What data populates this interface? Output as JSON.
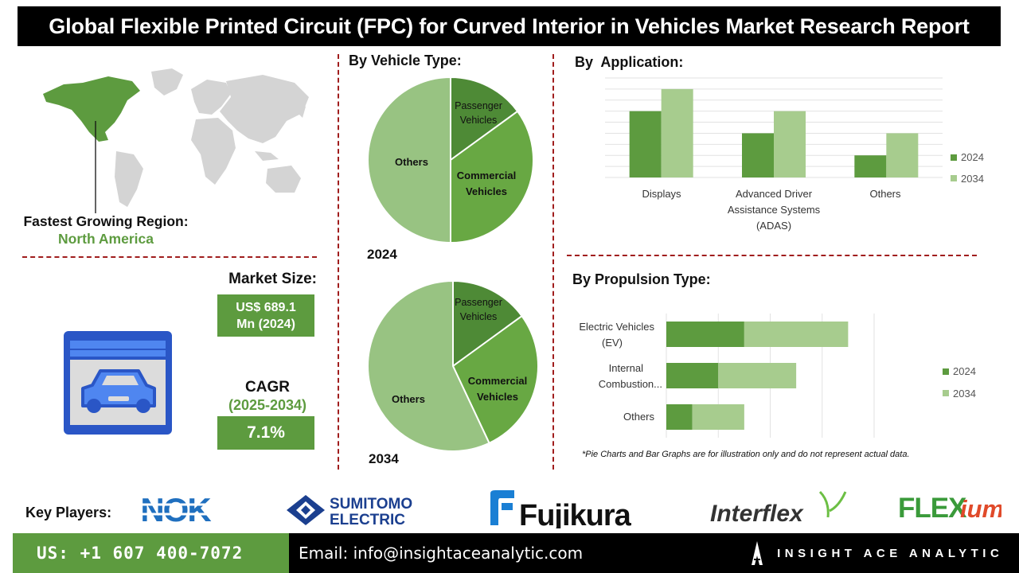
{
  "title": "Global Flexible Printed Circuit (FPC) for Curved Interior in Vehicles Market Research Report",
  "region": {
    "label": "Fastest Growing Region:",
    "value": "North America"
  },
  "market_size": {
    "label": "Market Size:",
    "value_line1": "US$ 689.1",
    "value_line2": "Mn (2024)"
  },
  "cagr": {
    "label": "CAGR",
    "period": "(2025-2034)",
    "value": "7.1%"
  },
  "vehicle_type": {
    "heading": "By Vehicle Type:",
    "year_top": "2024",
    "year_bottom": "2034"
  },
  "application": {
    "heading": "By  Application:"
  },
  "propulsion": {
    "heading": "By Propulsion Type:"
  },
  "note": "*Pie Charts and Bar Graphs are for illustration only and do not represent actual data.",
  "key_players": {
    "label": "Key Players:",
    "logos": [
      "NOK",
      "SUMITOMO",
      "ELECTRIC",
      "Fujikura",
      "Interflex",
      "FLEX",
      "ium"
    ]
  },
  "footer": {
    "phone": "US: +1 607 400-7072",
    "email": "Email: info@insightaceanalytic.com",
    "brand": "INSIGHT ACE ANALYTIC"
  },
  "colors": {
    "dark_green": "#5d9b3f",
    "light_green": "#a7cc8e",
    "pie_dark": "#4e8a36",
    "pie_mid": "#68a843",
    "pie_light": "#98c382",
    "accent_red": "#a01d1d"
  },
  "chart_data": [
    {
      "type": "pie",
      "title": "2024",
      "labels": [
        "Passenger Vehicles",
        "Commercial Vehicles",
        "Others"
      ],
      "values": [
        15,
        35,
        50
      ]
    },
    {
      "type": "pie",
      "title": "2034",
      "labels": [
        "Passenger Vehicles",
        "Commercial Vehicles",
        "Others"
      ],
      "values": [
        15,
        28,
        57
      ]
    },
    {
      "type": "bar",
      "title": "By  Application:",
      "categories": [
        "Displays",
        "Advanced Driver Assistance Systems (ADAS)",
        "Others"
      ],
      "series": [
        {
          "name": "2024",
          "values": [
            3,
            2,
            1
          ]
        },
        {
          "name": "2034",
          "values": [
            4,
            3,
            2
          ]
        }
      ],
      "ylim": [
        0,
        4.5
      ],
      "grid": true,
      "legend": "right"
    },
    {
      "type": "bar",
      "orientation": "horizontal-stacked",
      "title": "By Propulsion Type:",
      "categories": [
        "Electric Vehicles (EV)",
        "Internal Combustion...",
        "Others"
      ],
      "series": [
        {
          "name": "2024",
          "values": [
            1.5,
            1.0,
            0.5
          ]
        },
        {
          "name": "2034",
          "values": [
            2.0,
            1.5,
            1.0
          ]
        }
      ],
      "xlim": [
        0,
        4
      ],
      "grid": true,
      "legend": "right"
    }
  ]
}
